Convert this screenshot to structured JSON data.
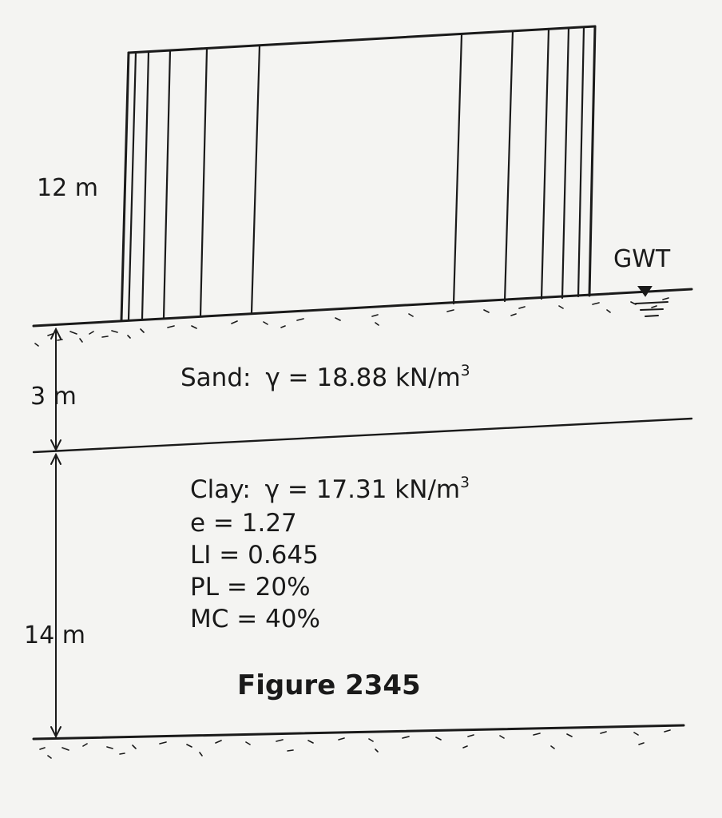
{
  "building": {
    "height_label": "12 m"
  },
  "water_table": {
    "label": "GWT"
  },
  "sand_layer": {
    "thickness_label": "3 m",
    "name": "Sand:",
    "gamma_symbol": "γ",
    "gamma_text": "= 18.88 kN/m",
    "gamma_unit_exp": "3"
  },
  "clay_layer": {
    "thickness_label": "14 m",
    "name": "Clay:",
    "gamma_symbol": "γ",
    "gamma_text": "= 17.31 kN/m",
    "gamma_unit_exp": "3",
    "properties": [
      "e = 1.27",
      "LI = 0.645",
      "PL = 20%",
      "MC = 40%"
    ]
  },
  "figure_caption": "Figure 2345"
}
